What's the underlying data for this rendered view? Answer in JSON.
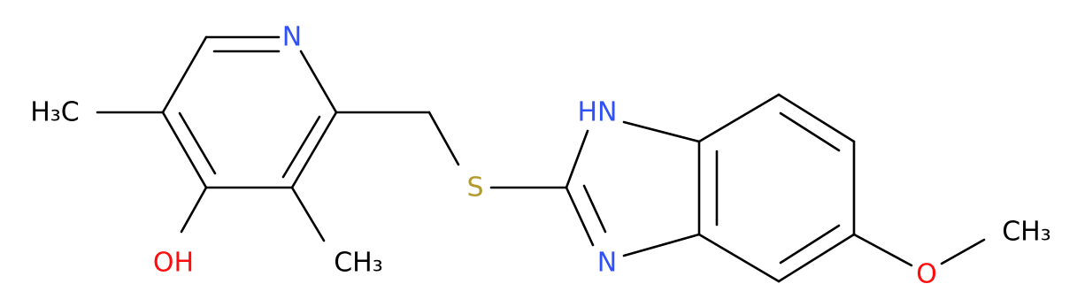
{
  "molecule": {
    "atoms": [
      {
        "label": "N"
      },
      {
        "label": "H₃C"
      },
      {
        "label": "OH"
      },
      {
        "label": "CH₃"
      },
      {
        "label": "S"
      },
      {
        "label": "HN"
      },
      {
        "label": "N"
      },
      {
        "label": "O"
      },
      {
        "label": "CH₃"
      }
    ]
  }
}
